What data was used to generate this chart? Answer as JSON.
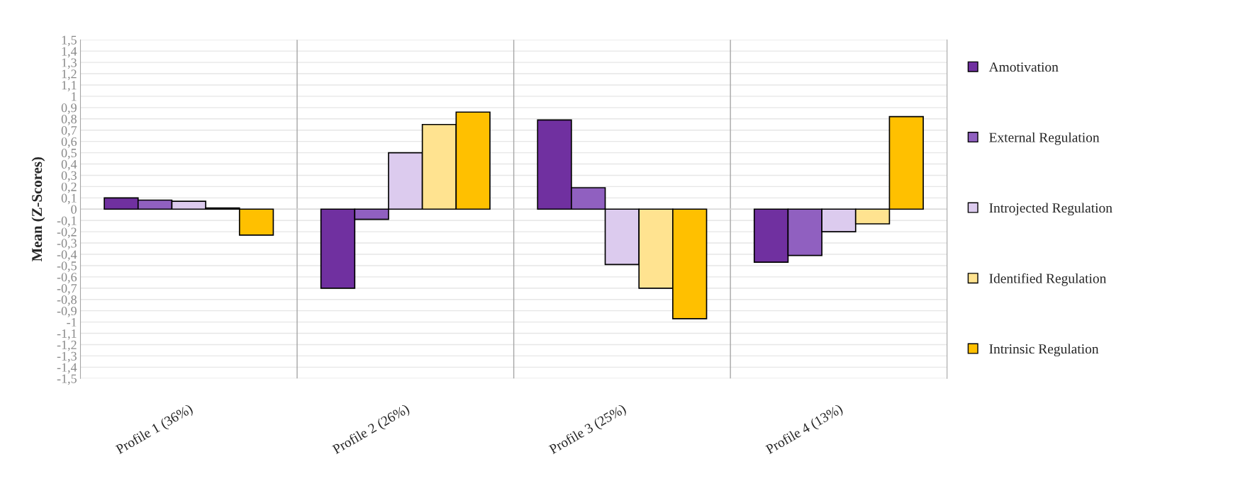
{
  "chart_data": {
    "type": "bar",
    "ylabel": "Mean (Z-Scores)",
    "categories": [
      "Profile 1 (36%)",
      "Profile 2 (26%)",
      "Profile 3 (25%)",
      "Profile 4 (13%)"
    ],
    "series": [
      {
        "name": "Amotivation",
        "color": "#7030a0",
        "values": [
          0.1,
          -0.7,
          0.79,
          -0.47
        ]
      },
      {
        "name": "External Regulation",
        "color": "#9060c0",
        "values": [
          0.08,
          -0.09,
          0.19,
          -0.41
        ]
      },
      {
        "name": "Introjected Regulation",
        "color": "#dccbee",
        "values": [
          0.07,
          0.5,
          -0.49,
          -0.2
        ]
      },
      {
        "name": "Identified Regulation",
        "color": "#ffe390",
        "values": [
          0.01,
          0.75,
          -0.7,
          -0.13
        ]
      },
      {
        "name": "Intrinsic Regulation",
        "color": "#ffc000",
        "values": [
          -0.23,
          0.86,
          -0.97,
          0.82
        ]
      }
    ],
    "ylim": [
      -1.5,
      1.5
    ],
    "yticks": [
      {
        "value": -1.5,
        "label": "-1,5"
      },
      {
        "value": -1.4,
        "label": "-1,4"
      },
      {
        "value": -1.3,
        "label": "-1,3"
      },
      {
        "value": -1.2,
        "label": "-1,2"
      },
      {
        "value": -1.1,
        "label": "-1,1"
      },
      -1,
      {
        "value": -0.9,
        "label": "-0,9"
      },
      {
        "value": -0.8,
        "label": "-0,8"
      },
      {
        "value": -0.7,
        "label": "-0,7"
      },
      {
        "value": -0.6,
        "label": "-0,6"
      },
      {
        "value": -0.5,
        "label": "-0,5"
      },
      {
        "value": -0.4,
        "label": "-0,4"
      },
      {
        "value": -0.3,
        "label": "-0,3"
      },
      {
        "value": -0.2,
        "label": "-0,2"
      },
      {
        "value": -0.1,
        "label": "-0,1"
      },
      0,
      {
        "value": 0.1,
        "label": "0,1"
      },
      {
        "value": 0.2,
        "label": "0,2"
      },
      {
        "value": 0.3,
        "label": "0,3"
      },
      {
        "value": 0.4,
        "label": "0,4"
      },
      {
        "value": 0.5,
        "label": "0,5"
      },
      {
        "value": 0.6,
        "label": "0,6"
      },
      {
        "value": 0.7,
        "label": "0,7"
      },
      {
        "value": 0.8,
        "label": "0,8"
      },
      {
        "value": 0.9,
        "label": "0,9"
      },
      1,
      {
        "value": 1.1,
        "label": "1,1"
      },
      {
        "value": 1.2,
        "label": "1,2"
      },
      {
        "value": 1.3,
        "label": "1,3"
      },
      {
        "value": 1.4,
        "label": "1,4"
      },
      {
        "value": 1.5,
        "label": "1,5"
      }
    ],
    "grid": true,
    "legend": "right"
  }
}
